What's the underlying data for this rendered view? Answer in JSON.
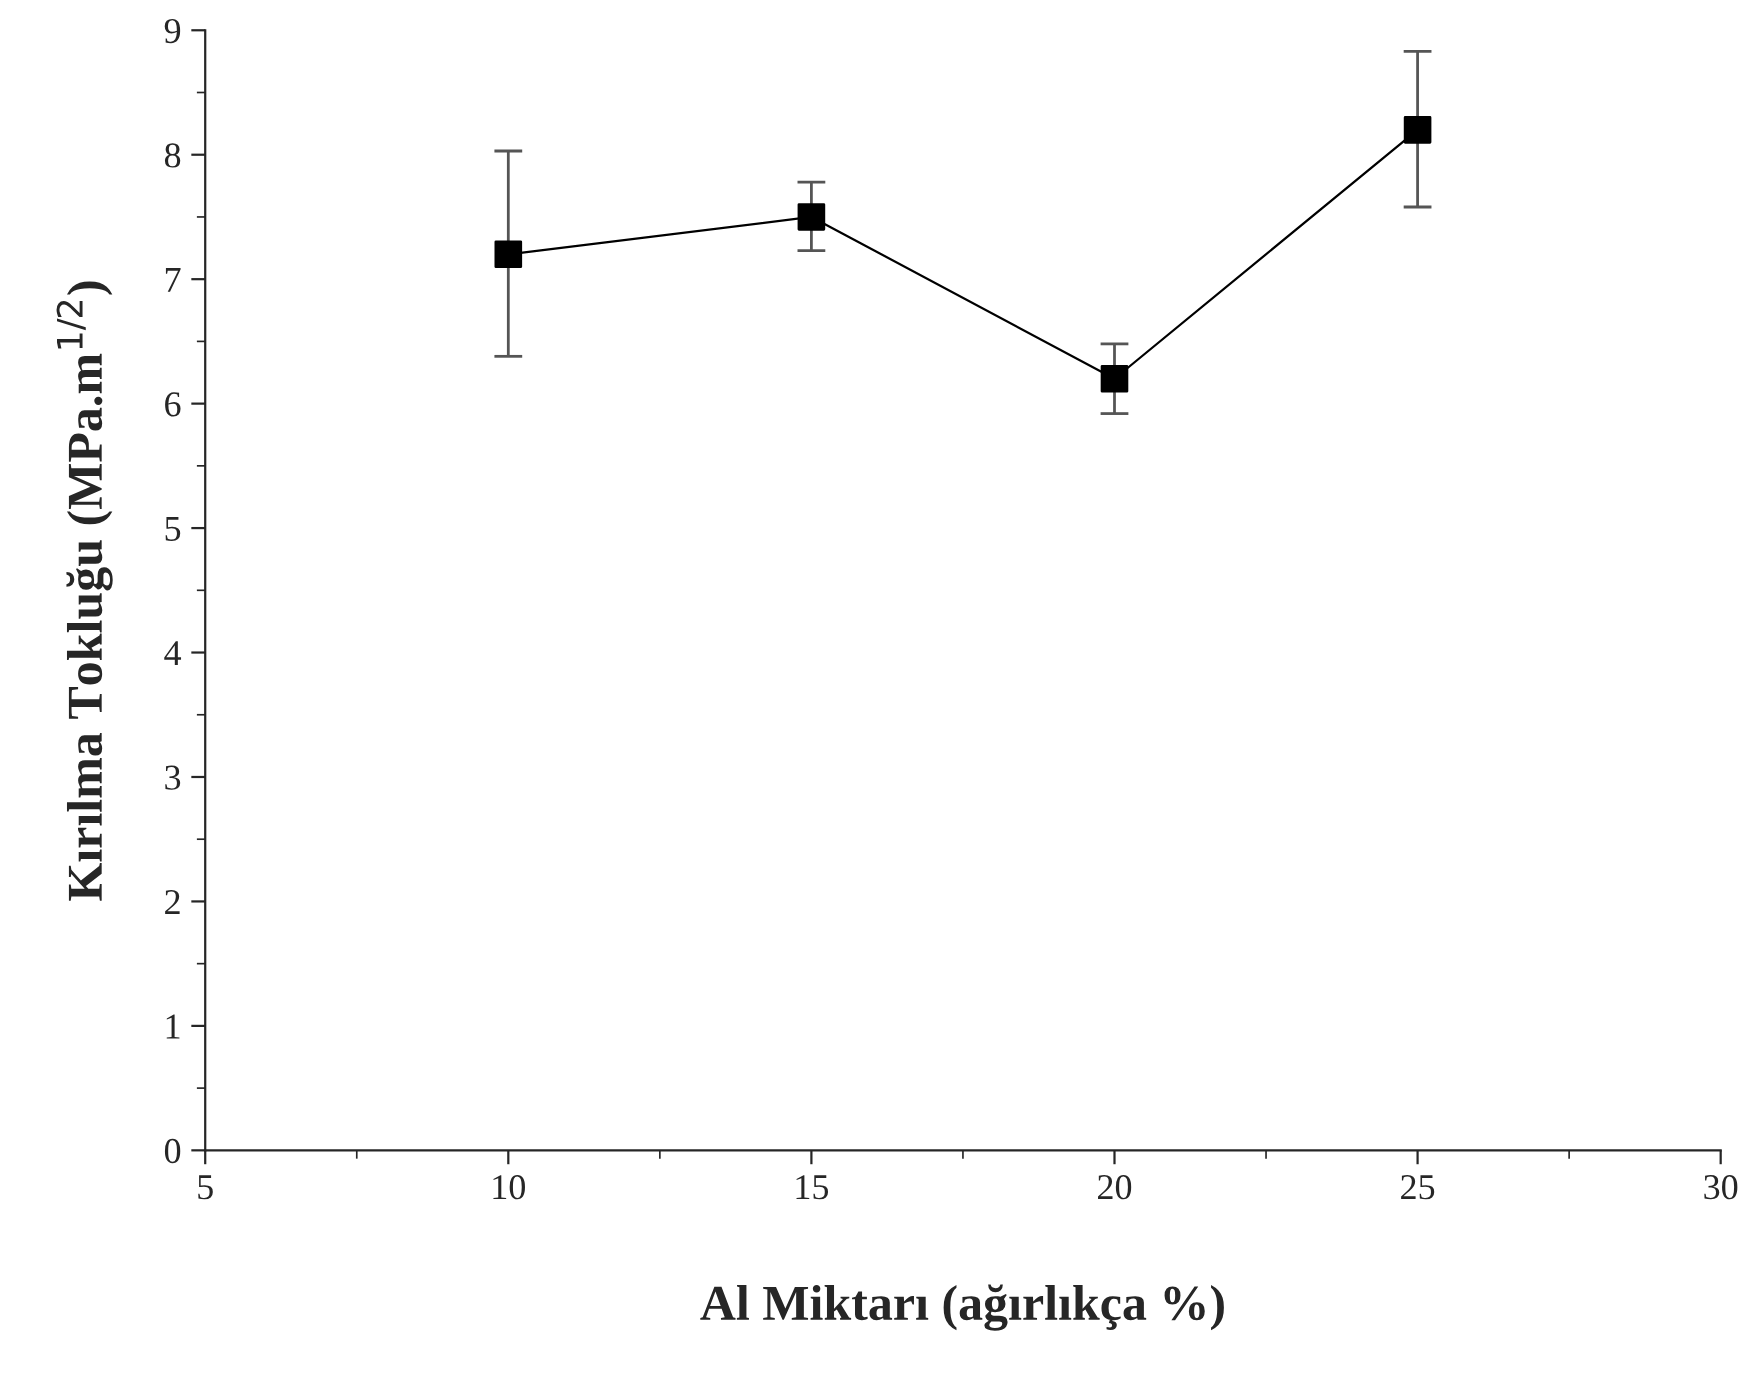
{
  "chart_data": {
    "type": "line",
    "xlabel": "Al Miktarı (ağırlıkça %)",
    "ylabel": "Kırılma Tokluğu (MPa.m$^{1/2}$)",
    "x": [
      10,
      15,
      20,
      25
    ],
    "series": [
      {
        "color": "#000000",
        "values": [
          7.2,
          7.5,
          6.2,
          8.2
        ],
        "errors": [
          [
            6.38,
            8.03
          ],
          [
            7.23,
            7.78
          ],
          [
            5.92,
            6.48
          ],
          [
            7.58,
            8.83
          ]
        ]
      }
    ],
    "marker": "square",
    "line_style": "solid",
    "grid": false,
    "legend": false,
    "xlim": [
      5,
      30
    ],
    "xticks": [
      5,
      10,
      15,
      20,
      25,
      30
    ],
    "ylim": [
      0,
      9
    ],
    "yticks": [
      0,
      1,
      2,
      3,
      4,
      5,
      6,
      7,
      8,
      9
    ]
  }
}
